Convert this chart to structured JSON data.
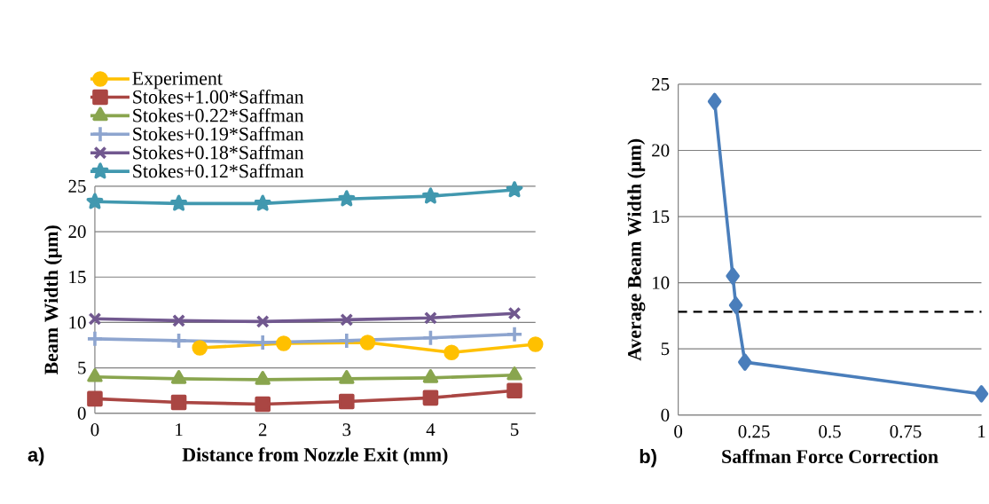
{
  "chart_data": [
    {
      "type": "line",
      "xlabel": "Distance from Nozzle Exit (mm)",
      "ylabel": "Beam Width (µm)",
      "annotations": [
        "a)"
      ],
      "x": [
        0,
        1,
        2,
        3,
        4,
        5
      ],
      "xlim": [
        0,
        5.25
      ],
      "xticks": [
        0,
        1,
        2,
        3,
        4,
        5
      ],
      "ylim": [
        0,
        25
      ],
      "yticks": [
        0,
        5,
        10,
        15,
        20,
        25
      ],
      "grid": "y",
      "legend": "top",
      "series": [
        {
          "name": "Experiment",
          "color": "#ffc000",
          "marker": "circle",
          "x": [
            1.25,
            2.25,
            3.25,
            4.25,
            5.25
          ],
          "values": [
            7.2,
            7.7,
            7.8,
            6.7,
            7.6
          ]
        },
        {
          "name": "Stokes+1.00*Saffman",
          "color": "#aa4643",
          "marker": "square",
          "values": [
            1.6,
            1.2,
            1.0,
            1.3,
            1.7,
            2.5
          ]
        },
        {
          "name": "Stokes+0.22*Saffman",
          "color": "#89a54e",
          "marker": "triangle",
          "values": [
            4.0,
            3.8,
            3.7,
            3.8,
            3.9,
            4.2
          ]
        },
        {
          "name": "Stokes+0.19*Saffman",
          "color": "#8ea5cf",
          "marker": "plus",
          "values": [
            8.2,
            8.0,
            7.8,
            8.0,
            8.3,
            8.7
          ]
        },
        {
          "name": "Stokes+0.18*Saffman",
          "color": "#71588f",
          "marker": "cross",
          "values": [
            10.4,
            10.2,
            10.1,
            10.3,
            10.5,
            11.0
          ]
        },
        {
          "name": "Stokes+0.12*Saffman",
          "color": "#4198af",
          "marker": "star",
          "values": [
            23.3,
            23.1,
            23.1,
            23.6,
            23.9,
            24.6
          ]
        }
      ]
    },
    {
      "type": "line",
      "xlabel": "Saffman Force Correction",
      "ylabel": "Average Beam Width (µm)",
      "annotations": [
        "b)"
      ],
      "xlim": [
        0,
        1
      ],
      "xticks": [
        0,
        0.25,
        0.5,
        0.75,
        1
      ],
      "ylim": [
        0,
        25
      ],
      "yticks": [
        0,
        5,
        10,
        15,
        20,
        25
      ],
      "grid": "y",
      "series": [
        {
          "color": "#4a7ebb",
          "marker": "diamond",
          "x": [
            0.12,
            0.18,
            0.19,
            0.22,
            1
          ],
          "values": [
            23.7,
            10.5,
            8.3,
            4.0,
            1.6
          ]
        }
      ],
      "ref_lines": [
        {
          "axis": "y",
          "value": 7.8,
          "color": "#000000",
          "line_style": "dashed"
        }
      ]
    }
  ]
}
